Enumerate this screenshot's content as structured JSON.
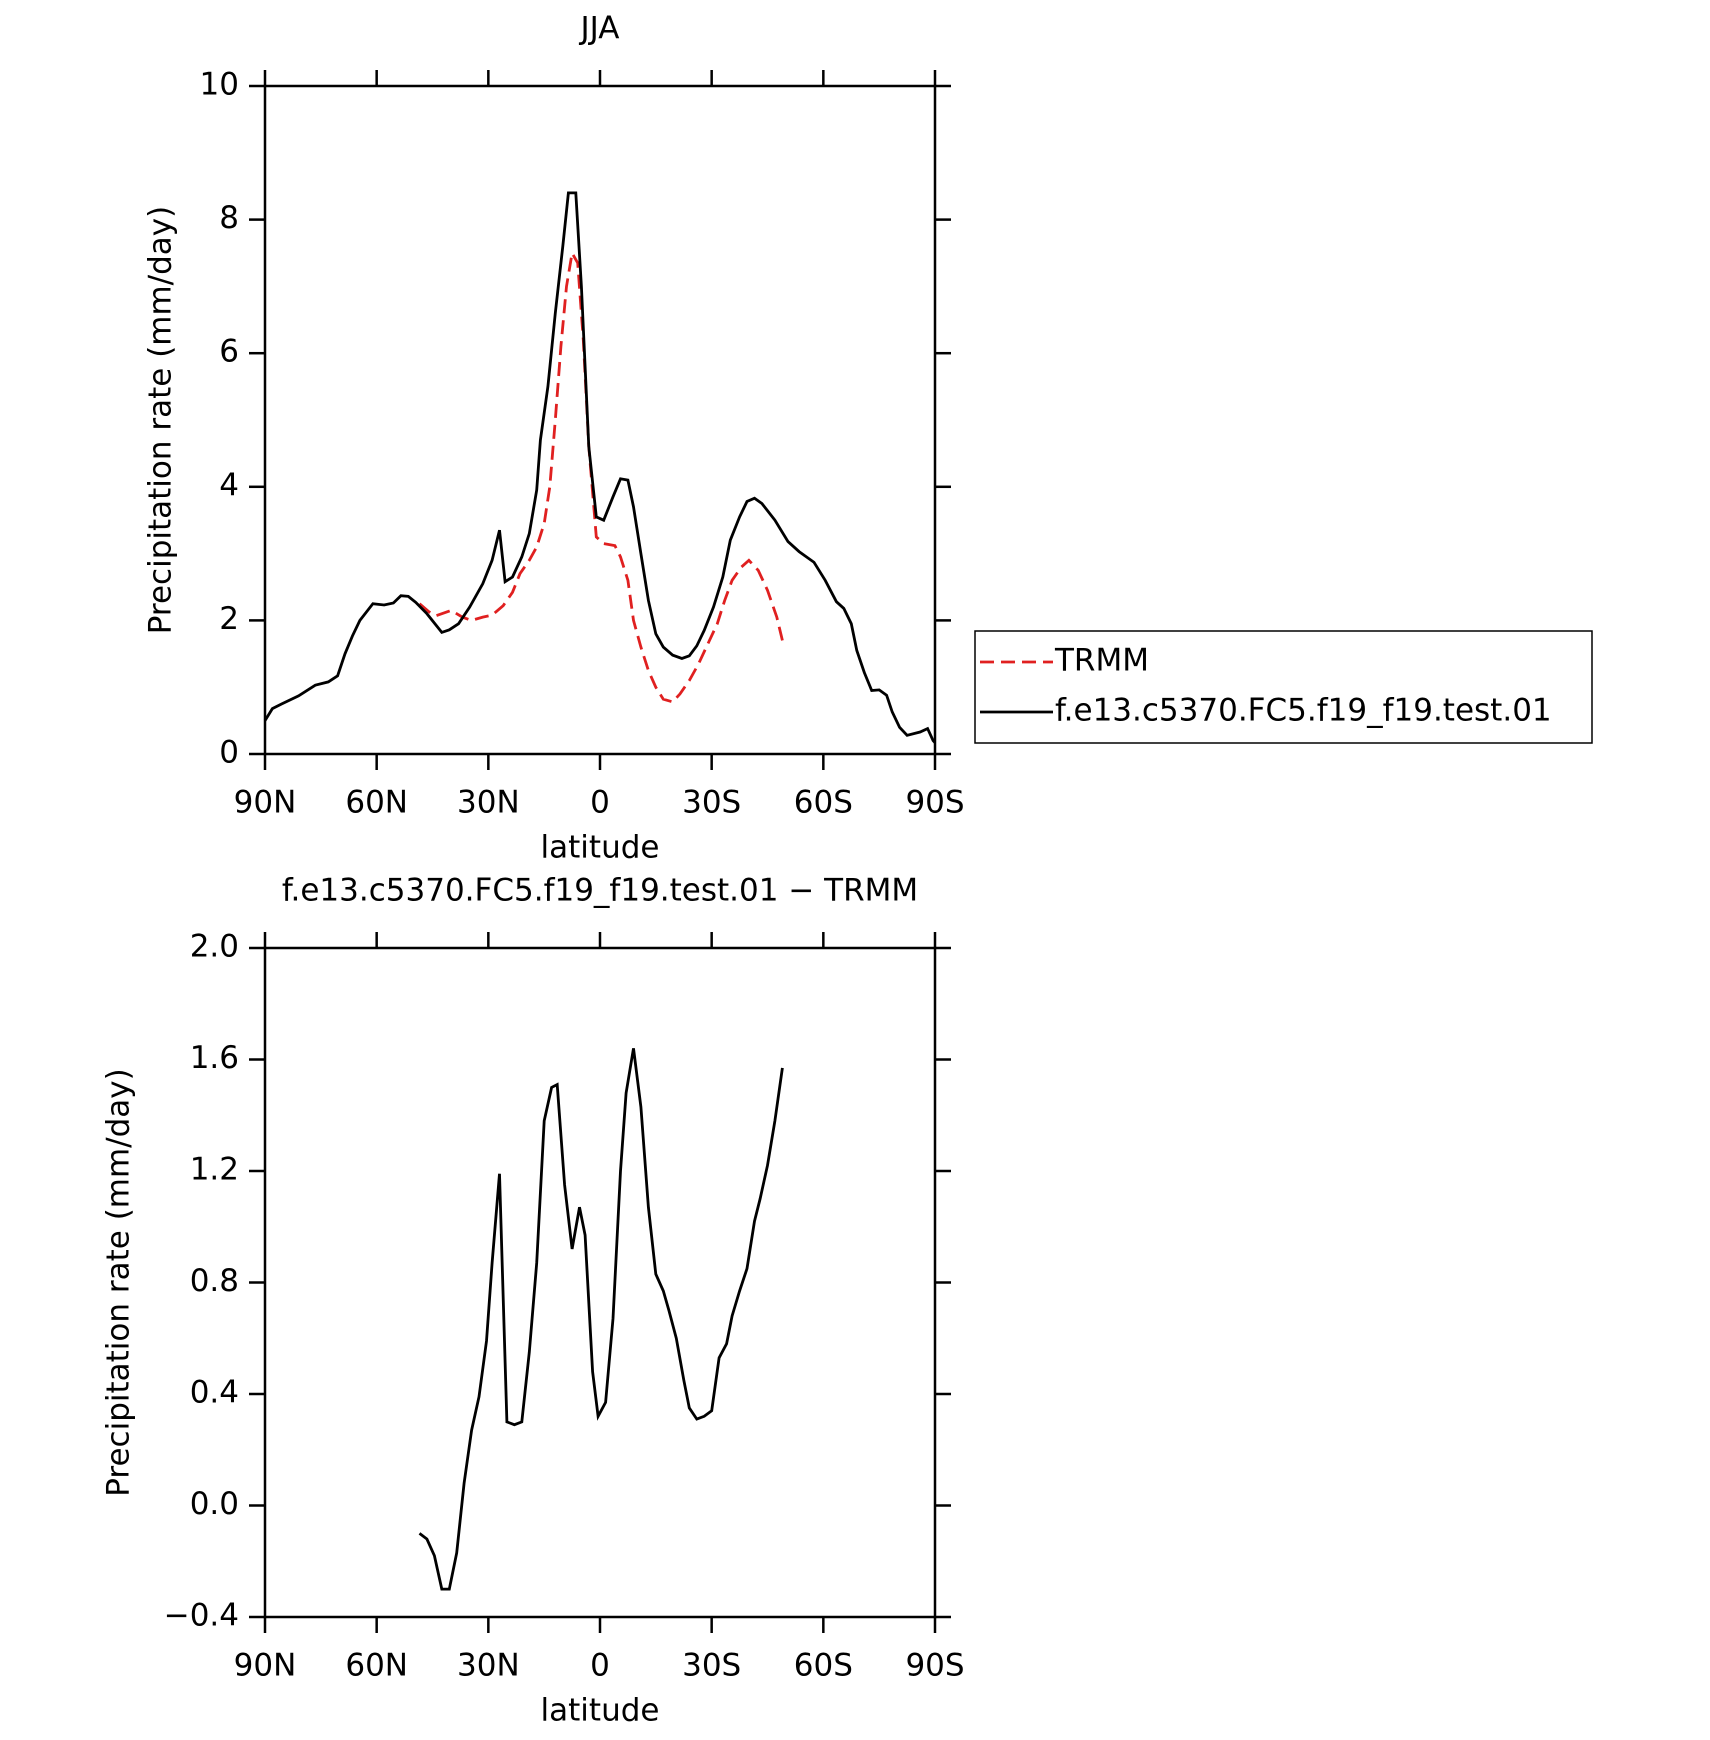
{
  "chart_data": [
    {
      "type": "line",
      "title": "JJA",
      "xlabel": "latitude",
      "ylabel": "Precipitation rate (mm/day)",
      "xlim": [
        90,
        -90
      ],
      "xticks": [
        {
          "value": 90,
          "label": "90N"
        },
        {
          "value": 60,
          "label": "60N"
        },
        {
          "value": 30,
          "label": "30N"
        },
        0,
        {
          "value": -30,
          "label": "30S"
        },
        {
          "value": -60,
          "label": "60S"
        },
        {
          "value": -90,
          "label": "90S"
        }
      ],
      "ylim": [
        0,
        10
      ],
      "yticks": [
        0,
        2,
        4,
        6,
        8,
        10
      ],
      "legend": "right",
      "series": [
        {
          "name": "TRMM",
          "color": "#e02020",
          "dashed": true,
          "x": [
            48.5,
            46,
            44,
            40,
            37,
            34.5,
            31.5,
            29,
            26,
            23.5,
            21.5,
            19,
            17,
            15,
            13.5,
            12,
            10.5,
            9,
            7.5,
            6,
            4.5,
            3,
            1,
            -1,
            -4,
            -5.5,
            -7.5,
            -9,
            -11,
            -13,
            -15,
            -17,
            -19.5,
            -21.5,
            -24,
            -26.5,
            -29,
            -31.5,
            -33.5,
            -35.5,
            -38,
            -40,
            -42.5,
            -45,
            -47.5,
            -49
          ],
          "values": [
            2.25,
            2.13,
            2.07,
            2.15,
            2.05,
            2.0,
            2.05,
            2.08,
            2.22,
            2.42,
            2.7,
            2.9,
            3.1,
            3.45,
            4.0,
            5.0,
            6.1,
            7.0,
            7.5,
            7.35,
            6.2,
            4.6,
            3.25,
            3.15,
            3.12,
            2.95,
            2.6,
            2.0,
            1.6,
            1.25,
            1.0,
            0.82,
            0.78,
            0.9,
            1.1,
            1.35,
            1.65,
            1.95,
            2.3,
            2.6,
            2.8,
            2.9,
            2.75,
            2.45,
            2.05,
            1.7
          ]
        },
        {
          "name": "f.e13.c5370.FC5.f19_f19.test.01",
          "color": "#000000",
          "dashed": false,
          "x": [
            90,
            88,
            85.5,
            81,
            76.5,
            73,
            70.5,
            68.5,
            66.5,
            64.5,
            61,
            58,
            55.5,
            53.5,
            51.5,
            49.5,
            46.5,
            42.5,
            40.5,
            38,
            35,
            31.5,
            29,
            27,
            25.5,
            23.5,
            21,
            19,
            17,
            16,
            14,
            12,
            10,
            8.5,
            6.5,
            5,
            3,
            1,
            -1,
            -3.5,
            -5.5,
            -7.5,
            -9,
            -11,
            -13,
            -15,
            -17,
            -19.5,
            -22,
            -24,
            -26,
            -28,
            -30.5,
            -33,
            -35,
            -37.5,
            -39.5,
            -41.5,
            -43.5,
            -47,
            -50.5,
            -53.5,
            -57.5,
            -60.5,
            -63.5,
            -65.5,
            -67.5,
            -69,
            -71,
            -73,
            -75,
            -77,
            -78.5,
            -80.5,
            -82.5,
            -86,
            -88,
            -89.5,
            -90
          ],
          "values": [
            0.5,
            0.68,
            0.75,
            0.87,
            1.03,
            1.08,
            1.17,
            1.5,
            1.77,
            2.0,
            2.25,
            2.23,
            2.26,
            2.37,
            2.36,
            2.27,
            2.1,
            1.82,
            1.86,
            1.95,
            2.2,
            2.55,
            2.9,
            3.35,
            2.58,
            2.65,
            2.95,
            3.3,
            3.95,
            4.7,
            5.5,
            6.6,
            7.6,
            8.4,
            8.4,
            7.0,
            4.6,
            3.55,
            3.5,
            3.85,
            4.12,
            4.1,
            3.7,
            3.0,
            2.3,
            1.8,
            1.6,
            1.48,
            1.43,
            1.47,
            1.62,
            1.85,
            2.2,
            2.65,
            3.2,
            3.55,
            3.78,
            3.83,
            3.75,
            3.5,
            3.18,
            3.03,
            2.87,
            2.6,
            2.28,
            2.18,
            1.95,
            1.55,
            1.22,
            0.95,
            0.96,
            0.88,
            0.63,
            0.4,
            0.28,
            0.33,
            0.38,
            0.2,
            0.17
          ]
        }
      ]
    },
    {
      "type": "line",
      "title": "f.e13.c5370.FC5.f19_f19.test.01 − TRMM",
      "xlabel": "latitude",
      "ylabel": "Precipitation rate (mm/day)",
      "xlim": [
        90,
        -90
      ],
      "xticks": [
        {
          "value": 90,
          "label": "90N"
        },
        {
          "value": 60,
          "label": "60N"
        },
        {
          "value": 30,
          "label": "30N"
        },
        0,
        {
          "value": -30,
          "label": "30S"
        },
        {
          "value": -60,
          "label": "60S"
        },
        {
          "value": -90,
          "label": "90S"
        }
      ],
      "ylim": [
        -0.4,
        2
      ],
      "yticks": [
        {
          "value": -0.4,
          "label": "−0.4"
        },
        {
          "value": 0,
          "label": "0.0"
        },
        0.4,
        0.8,
        1.2,
        1.6,
        {
          "value": 2,
          "label": "2.0"
        }
      ],
      "series": [
        {
          "color": "#000000",
          "dashed": false,
          "x": [
            48.5,
            46.5,
            44.5,
            42.5,
            40.5,
            38.5,
            36.5,
            34.5,
            32.5,
            30.5,
            29,
            27,
            25,
            23,
            21,
            19,
            17,
            15,
            13,
            11.5,
            9.5,
            7.5,
            5.5,
            4,
            2,
            0.5,
            -1.5,
            -3.5,
            -5.5,
            -7,
            -9,
            -11,
            -13,
            -15,
            -17,
            -18.5,
            -20.5,
            -22.5,
            -24,
            -26,
            -28,
            -30,
            -32,
            -34,
            -35.5,
            -37.5,
            -39.5,
            -41.5,
            -43,
            -45,
            -47,
            -49
          ],
          "values": [
            -0.1,
            -0.12,
            -0.18,
            -0.3,
            -0.3,
            -0.17,
            0.08,
            0.27,
            0.39,
            0.59,
            0.87,
            1.19,
            0.3,
            0.29,
            0.3,
            0.55,
            0.87,
            1.38,
            1.5,
            1.51,
            1.15,
            0.92,
            1.07,
            0.97,
            0.48,
            0.32,
            0.37,
            0.67,
            1.2,
            1.48,
            1.64,
            1.43,
            1.07,
            0.83,
            0.77,
            0.7,
            0.6,
            0.45,
            0.35,
            0.31,
            0.32,
            0.34,
            0.53,
            0.58,
            0.68,
            0.77,
            0.85,
            1.02,
            1.1,
            1.22,
            1.38,
            1.57
          ]
        }
      ]
    }
  ]
}
